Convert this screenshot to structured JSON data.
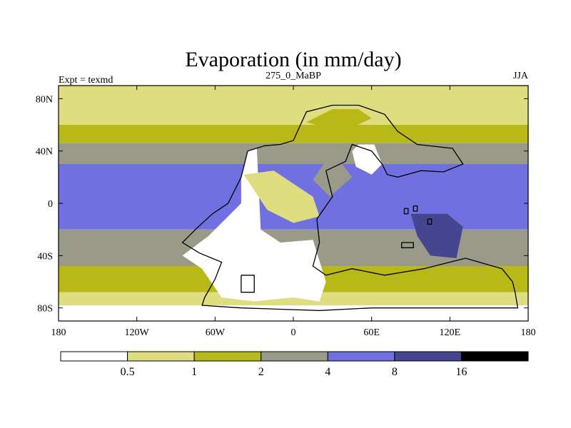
{
  "chart_data": {
    "type": "filled-contour-map",
    "title": "Evaporation (in mm/day)",
    "left_string": "Expt = texmd",
    "center_string": "275_0_MaBP",
    "right_string": "JJA",
    "variable": "Evaporation",
    "units": "mm/day",
    "season": "JJA",
    "experiment": "texmd",
    "time_slice": "275_0_MaBP",
    "xlim": [
      -180,
      180
    ],
    "ylim": [
      -90,
      90
    ],
    "x_ticks": [
      {
        "value": -180,
        "label": "180"
      },
      {
        "value": -120,
        "label": "120W"
      },
      {
        "value": -60,
        "label": "60W"
      },
      {
        "value": 0,
        "label": "0"
      },
      {
        "value": 60,
        "label": "60E"
      },
      {
        "value": 120,
        "label": "120E"
      },
      {
        "value": 180,
        "label": "180"
      }
    ],
    "y_ticks": [
      {
        "value": 80,
        "label": "80N"
      },
      {
        "value": 40,
        "label": "40N"
      },
      {
        "value": 0,
        "label": "0"
      },
      {
        "value": -40,
        "label": "40S"
      },
      {
        "value": -80,
        "label": "80S"
      }
    ],
    "levels": [
      0.5,
      1,
      2,
      4,
      8,
      16
    ],
    "level_labels": [
      "0.5",
      "1",
      "2",
      "4",
      "8",
      "16"
    ],
    "colors": [
      "#ffffff",
      "#dede80",
      "#b8b818",
      "#9a9a88",
      "#7070e0",
      "#454590",
      "#000000"
    ],
    "regions": [
      {
        "name": "nh-polar",
        "bin": 1,
        "poly": [
          [
            -180,
            90
          ],
          [
            180,
            90
          ],
          [
            180,
            60
          ],
          [
            -180,
            60
          ]
        ]
      },
      {
        "name": "nh-high-lat",
        "bin": 2,
        "poly": [
          [
            -180,
            60
          ],
          [
            180,
            60
          ],
          [
            180,
            46
          ],
          [
            -180,
            46
          ]
        ]
      },
      {
        "name": "nh-mid-lat",
        "bin": 3,
        "poly": [
          [
            -180,
            46
          ],
          [
            180,
            46
          ],
          [
            180,
            30
          ],
          [
            -180,
            30
          ]
        ]
      },
      {
        "name": "tropics",
        "bin": 4,
        "poly": [
          [
            -180,
            30
          ],
          [
            180,
            30
          ],
          [
            180,
            -20
          ],
          [
            -180,
            -20
          ]
        ]
      },
      {
        "name": "sh-mid-lat",
        "bin": 3,
        "poly": [
          [
            -180,
            -20
          ],
          [
            180,
            -20
          ],
          [
            180,
            -48
          ],
          [
            -180,
            -48
          ]
        ]
      },
      {
        "name": "sh-high-lat",
        "bin": 2,
        "poly": [
          [
            -180,
            -48
          ],
          [
            180,
            -48
          ],
          [
            180,
            -68
          ],
          [
            -180,
            -68
          ]
        ]
      },
      {
        "name": "sh-subpolar",
        "bin": 1,
        "poly": [
          [
            -180,
            -68
          ],
          [
            180,
            -68
          ],
          [
            180,
            -78
          ],
          [
            -180,
            -78
          ]
        ]
      },
      {
        "name": "sh-polar",
        "bin": 0,
        "poly": [
          [
            -180,
            -78
          ],
          [
            180,
            -78
          ],
          [
            180,
            -90
          ],
          [
            -180,
            -90
          ]
        ]
      },
      {
        "name": "pangea-interior",
        "bin": 0,
        "poly": [
          [
            -28,
            42
          ],
          [
            -25,
            -20
          ],
          [
            -10,
            -30
          ],
          [
            15,
            -28
          ],
          [
            25,
            -60
          ],
          [
            20,
            -75
          ],
          [
            0,
            -72
          ],
          [
            -30,
            -75
          ],
          [
            -55,
            -72
          ],
          [
            -70,
            -50
          ],
          [
            -85,
            -40
          ],
          [
            -65,
            -25
          ],
          [
            -40,
            0
          ],
          [
            -40,
            20
          ],
          [
            -35,
            40
          ]
        ]
      },
      {
        "name": "asia-interior",
        "bin": 0,
        "poly": [
          [
            50,
            45
          ],
          [
            62,
            45
          ],
          [
            68,
            30
          ],
          [
            60,
            22
          ],
          [
            48,
            28
          ],
          [
            45,
            40
          ]
        ]
      },
      {
        "name": "pangea-arid-fringe",
        "bin": 1,
        "poly": [
          [
            -38,
            22
          ],
          [
            -15,
            25
          ],
          [
            15,
            5
          ],
          [
            20,
            -10
          ],
          [
            0,
            -15
          ],
          [
            -20,
            -5
          ],
          [
            -30,
            10
          ]
        ]
      },
      {
        "name": "tethys-coast",
        "bin": 3,
        "poly": [
          [
            15,
            18
          ],
          [
            30,
            40
          ],
          [
            45,
            20
          ],
          [
            28,
            5
          ]
        ]
      },
      {
        "name": "asian-humid-belt",
        "bin": 2,
        "poly": [
          [
            10,
            62
          ],
          [
            30,
            72
          ],
          [
            50,
            72
          ],
          [
            60,
            65
          ],
          [
            45,
            58
          ],
          [
            25,
            58
          ]
        ]
      },
      {
        "name": "tethys-core",
        "bin": 5,
        "poly": [
          [
            90,
            -8
          ],
          [
            118,
            -8
          ],
          [
            130,
            -18
          ],
          [
            125,
            -42
          ],
          [
            105,
            -40
          ],
          [
            95,
            -25
          ]
        ]
      }
    ],
    "coastlines": [
      {
        "name": "pangea",
        "points": [
          [
            -35,
            40
          ],
          [
            -22,
            44
          ],
          [
            -10,
            45
          ],
          [
            0,
            48
          ],
          [
            10,
            70
          ],
          [
            30,
            75
          ],
          [
            50,
            75
          ],
          [
            70,
            68
          ],
          [
            80,
            55
          ],
          [
            95,
            45
          ],
          [
            122,
            42
          ],
          [
            130,
            30
          ],
          [
            115,
            24
          ],
          [
            98,
            25
          ],
          [
            80,
            20
          ],
          [
            72,
            22
          ],
          [
            68,
            30
          ],
          [
            60,
            40
          ],
          [
            45,
            45
          ],
          [
            40,
            32
          ],
          [
            25,
            25
          ],
          [
            30,
            5
          ],
          [
            18,
            -12
          ],
          [
            20,
            -30
          ],
          [
            15,
            -48
          ],
          [
            25,
            -55
          ],
          [
            45,
            -50
          ],
          [
            70,
            -55
          ],
          [
            100,
            -50
          ],
          [
            120,
            -45
          ],
          [
            132,
            -42
          ],
          [
            160,
            -50
          ],
          [
            168,
            -60
          ],
          [
            170,
            -68
          ],
          [
            172,
            -80
          ],
          [
            60,
            -80
          ],
          [
            20,
            -82
          ],
          [
            -40,
            -80
          ],
          [
            -70,
            -78
          ],
          [
            -68,
            -72
          ],
          [
            -60,
            -58
          ],
          [
            -55,
            -45
          ],
          [
            -72,
            -38
          ],
          [
            -85,
            -30
          ],
          [
            -75,
            -20
          ],
          [
            -62,
            -8
          ],
          [
            -50,
            0
          ],
          [
            -45,
            10
          ],
          [
            -40,
            20
          ],
          [
            -35,
            40
          ]
        ]
      },
      {
        "name": "island-1",
        "points": [
          [
            85,
            -4
          ],
          [
            88,
            -4
          ],
          [
            88,
            -8
          ],
          [
            85,
            -8
          ],
          [
            85,
            -4
          ]
        ]
      },
      {
        "name": "island-2",
        "points": [
          [
            92,
            -2
          ],
          [
            95,
            -2
          ],
          [
            95,
            -6
          ],
          [
            92,
            -6
          ],
          [
            92,
            -2
          ]
        ]
      },
      {
        "name": "island-3",
        "points": [
          [
            103,
            -12
          ],
          [
            106,
            -12
          ],
          [
            106,
            -16
          ],
          [
            103,
            -16
          ],
          [
            103,
            -12
          ]
        ]
      },
      {
        "name": "island-4",
        "points": [
          [
            83,
            -30
          ],
          [
            92,
            -30
          ],
          [
            92,
            -34
          ],
          [
            83,
            -34
          ],
          [
            83,
            -30
          ]
        ]
      },
      {
        "name": "island-5",
        "points": [
          [
            -40,
            -55
          ],
          [
            -30,
            -55
          ],
          [
            -30,
            -68
          ],
          [
            -40,
            -68
          ],
          [
            -40,
            -55
          ]
        ]
      }
    ]
  }
}
